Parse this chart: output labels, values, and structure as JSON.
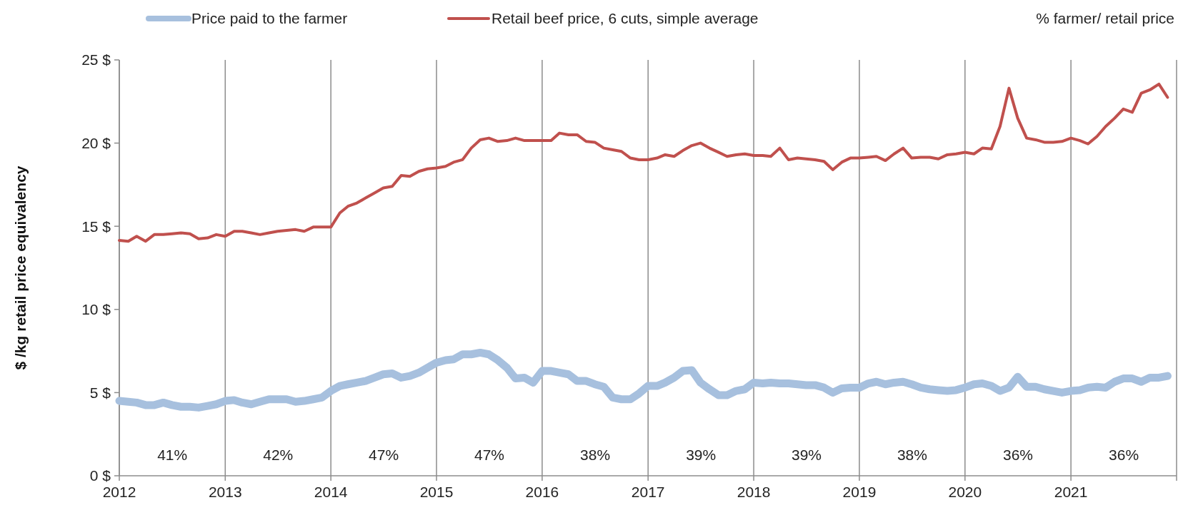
{
  "chart_data": {
    "type": "line",
    "ylabel": "$ /kg  retail price equivalency",
    "x": [
      "2012-01",
      "2012-02",
      "2012-03",
      "2012-04",
      "2012-05",
      "2012-06",
      "2012-07",
      "2012-08",
      "2012-09",
      "2012-10",
      "2012-11",
      "2012-12",
      "2013-01",
      "2013-02",
      "2013-03",
      "2013-04",
      "2013-05",
      "2013-06",
      "2013-07",
      "2013-08",
      "2013-09",
      "2013-10",
      "2013-11",
      "2013-12",
      "2014-01",
      "2014-02",
      "2014-03",
      "2014-04",
      "2014-05",
      "2014-06",
      "2014-07",
      "2014-08",
      "2014-09",
      "2014-10",
      "2014-11",
      "2014-12",
      "2015-01",
      "2015-02",
      "2015-03",
      "2015-04",
      "2015-05",
      "2015-06",
      "2015-07",
      "2015-08",
      "2015-09",
      "2015-10",
      "2015-11",
      "2015-12",
      "2016-01",
      "2016-02",
      "2016-03",
      "2016-04",
      "2016-05",
      "2016-06",
      "2016-07",
      "2016-08",
      "2016-09",
      "2016-10",
      "2016-11",
      "2016-12",
      "2017-01",
      "2017-02",
      "2017-03",
      "2017-04",
      "2017-05",
      "2017-06",
      "2017-07",
      "2017-08",
      "2017-09",
      "2017-10",
      "2017-11",
      "2017-12",
      "2018-01",
      "2018-02",
      "2018-03",
      "2018-04",
      "2018-05",
      "2018-06",
      "2018-07",
      "2018-08",
      "2018-09",
      "2018-10",
      "2018-11",
      "2018-12",
      "2019-01",
      "2019-02",
      "2019-03",
      "2019-04",
      "2019-05",
      "2019-06",
      "2019-07",
      "2019-08",
      "2019-09",
      "2019-10",
      "2019-11",
      "2019-12",
      "2020-01",
      "2020-02",
      "2020-03",
      "2020-04",
      "2020-05",
      "2020-06",
      "2020-07",
      "2020-08",
      "2020-09",
      "2020-10",
      "2020-11",
      "2020-12",
      "2021-01",
      "2021-02",
      "2021-03",
      "2021-04",
      "2021-05",
      "2021-06",
      "2021-07",
      "2021-08",
      "2021-09",
      "2021-10",
      "2021-11",
      "2021-12"
    ],
    "series": [
      {
        "name": "Price paid to the farmer",
        "color": "#a7c0de",
        "values": [
          4.5,
          4.45,
          4.4,
          4.25,
          4.25,
          4.4,
          4.25,
          4.15,
          4.15,
          4.1,
          4.2,
          4.3,
          4.5,
          4.55,
          4.4,
          4.3,
          4.45,
          4.6,
          4.6,
          4.6,
          4.45,
          4.5,
          4.6,
          4.7,
          5.1,
          5.4,
          5.5,
          5.6,
          5.7,
          5.9,
          6.1,
          6.15,
          5.9,
          6.0,
          6.2,
          6.5,
          6.8,
          6.95,
          7.0,
          7.3,
          7.3,
          7.4,
          7.3,
          6.95,
          6.5,
          5.85,
          5.9,
          5.6,
          6.3,
          6.3,
          6.2,
          6.1,
          5.7,
          5.7,
          5.5,
          5.35,
          4.7,
          4.6,
          4.6,
          4.95,
          5.4,
          5.4,
          5.6,
          5.9,
          6.3,
          6.35,
          5.6,
          5.2,
          4.85,
          4.85,
          5.1,
          5.2,
          5.6,
          5.55,
          5.6,
          5.55,
          5.55,
          5.5,
          5.45,
          5.45,
          5.3,
          5.0,
          5.25,
          5.3,
          5.3,
          5.55,
          5.65,
          5.5,
          5.6,
          5.65,
          5.5,
          5.3,
          5.2,
          5.15,
          5.1,
          5.15,
          5.3,
          5.5,
          5.55,
          5.4,
          5.1,
          5.3,
          5.95,
          5.35,
          5.35,
          5.2,
          5.1,
          5.0,
          5.1,
          5.15,
          5.3,
          5.35,
          5.3,
          5.65,
          5.85,
          5.85,
          5.65,
          5.9,
          5.9,
          6.0
        ]
      },
      {
        "name": "Retail beef price, 6 cuts, simple average",
        "color": "#c0504d",
        "values": [
          14.15,
          14.1,
          14.4,
          14.1,
          14.5,
          14.5,
          14.55,
          14.6,
          14.55,
          14.25,
          14.3,
          14.5,
          14.4,
          14.7,
          14.7,
          14.6,
          14.5,
          14.6,
          14.7,
          14.75,
          14.8,
          14.7,
          14.95,
          14.95,
          14.95,
          15.8,
          16.2,
          16.4,
          16.7,
          17.0,
          17.3,
          17.4,
          18.05,
          18.0,
          18.3,
          18.45,
          18.5,
          18.6,
          18.85,
          19.0,
          19.7,
          20.2,
          20.3,
          20.1,
          20.15,
          20.3,
          20.15,
          20.15,
          20.15,
          20.15,
          20.6,
          20.5,
          20.5,
          20.1,
          20.05,
          19.7,
          19.6,
          19.5,
          19.1,
          19.0,
          19.0,
          19.1,
          19.3,
          19.2,
          19.55,
          19.85,
          20.0,
          19.7,
          19.45,
          19.2,
          19.3,
          19.35,
          19.25,
          19.25,
          19.2,
          19.7,
          19.0,
          19.1,
          19.05,
          19.0,
          18.9,
          18.4,
          18.85,
          19.1,
          19.1,
          19.15,
          19.2,
          18.95,
          19.35,
          19.7,
          19.1,
          19.15,
          19.15,
          19.05,
          19.3,
          19.35,
          19.45,
          19.35,
          19.7,
          19.65,
          21.0,
          23.3,
          21.5,
          20.3,
          20.2,
          20.05,
          20.05,
          20.1,
          20.3,
          20.15,
          19.95,
          20.4,
          21.0,
          21.5,
          22.05,
          21.85,
          23.0,
          23.2,
          23.55,
          22.75
        ]
      }
    ],
    "xlim": [
      "2012-01",
      "2022-01"
    ],
    "xticks": [
      {
        "value": "2012",
        "label": "2012"
      },
      {
        "value": "2013",
        "label": "2013"
      },
      {
        "value": "2014",
        "label": "2014"
      },
      {
        "value": "2015",
        "label": "2015"
      },
      {
        "value": "2016",
        "label": "2016"
      },
      {
        "value": "2017",
        "label": "2017"
      },
      {
        "value": "2018",
        "label": "2018"
      },
      {
        "value": "2019",
        "label": "2019"
      },
      {
        "value": "2020",
        "label": "2020"
      },
      {
        "value": "2021",
        "label": "2021"
      },
      {
        "value": "2022",
        "label": null
      }
    ],
    "ylim": [
      0,
      25
    ],
    "yticks": [
      {
        "value": 0,
        "label": "0 $"
      },
      {
        "value": 5,
        "label": "5 $"
      },
      {
        "value": 10,
        "label": "10 $"
      },
      {
        "value": 15,
        "label": "15 $"
      },
      {
        "value": 20,
        "label": "20 $"
      },
      {
        "value": 25,
        "label": "25 $"
      }
    ],
    "grid": "x",
    "legend": "top",
    "marker": "none",
    "line_style": "solid",
    "annotations": [
      "% farmer/ retail price",
      "41%",
      "42%",
      "47%",
      "47%",
      "38%",
      "39%",
      "39%",
      "38%",
      "36%",
      "36%"
    ]
  }
}
